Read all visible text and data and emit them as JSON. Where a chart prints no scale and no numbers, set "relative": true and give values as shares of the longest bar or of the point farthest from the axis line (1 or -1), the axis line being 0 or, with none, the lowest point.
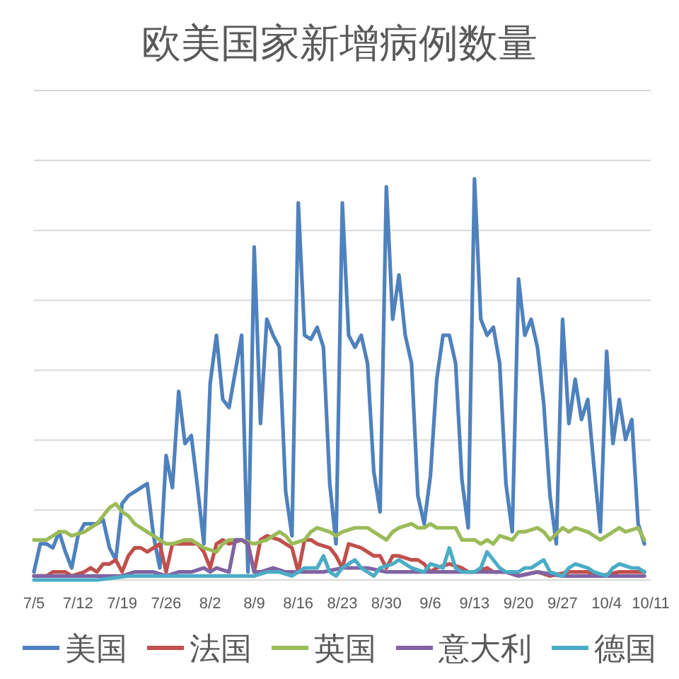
{
  "chart_data": {
    "type": "line",
    "title": "欧美国家新增病例数量",
    "relative": true,
    "grid": "y",
    "legend": "bottom",
    "xlim": [
      "--07-05",
      "--10-11"
    ],
    "xticks": [
      {
        "value": "--07-05",
        "label": "7/5"
      },
      {
        "value": "--07-12",
        "label": "7/12"
      },
      {
        "value": "--07-19",
        "label": "7/19"
      },
      {
        "value": "--07-26",
        "label": "7/26"
      },
      {
        "value": "--08-02",
        "label": "8/2"
      },
      {
        "value": "--08-09",
        "label": "8/9"
      },
      {
        "value": "--08-16",
        "label": "8/16"
      },
      {
        "value": "--08-23",
        "label": "8/23"
      },
      {
        "value": "--08-30",
        "label": "8/30"
      },
      {
        "value": "--09-06",
        "label": "9/6"
      },
      {
        "value": "--09-13",
        "label": "9/13"
      },
      {
        "value": "--09-20",
        "label": "9/20"
      },
      {
        "value": "--09-27",
        "label": "9/27"
      },
      {
        "value": "--10-04",
        "label": "10/4"
      },
      {
        "value": "--10-11",
        "label": "10/11"
      }
    ],
    "x": [
      "--07-05",
      "--07-06",
      "--07-07",
      "--07-08",
      "--07-09",
      "--07-10",
      "--07-11",
      "--07-12",
      "--07-13",
      "--07-14",
      "--07-15",
      "--07-16",
      "--07-17",
      "--07-18",
      "--07-19",
      "--07-20",
      "--07-21",
      "--07-22",
      "--07-23",
      "--07-24",
      "--07-25",
      "--07-26",
      "--07-27",
      "--07-28",
      "--07-29",
      "--07-30",
      "--07-31",
      "--08-01",
      "--08-02",
      "--08-03",
      "--08-04",
      "--08-05",
      "--08-06",
      "--08-07",
      "--08-08",
      "--08-09",
      "--08-10",
      "--08-11",
      "--08-12",
      "--08-13",
      "--08-14",
      "--08-15",
      "--08-16",
      "--08-17",
      "--08-18",
      "--08-19",
      "--08-20",
      "--08-21",
      "--08-22",
      "--08-23",
      "--08-24",
      "--08-25",
      "--08-26",
      "--08-27",
      "--08-28",
      "--08-29",
      "--08-30",
      "--08-31",
      "--09-01",
      "--09-02",
      "--09-03",
      "--09-04",
      "--09-05",
      "--09-06",
      "--09-07",
      "--09-08",
      "--09-09",
      "--09-10",
      "--09-11",
      "--09-12",
      "--09-13",
      "--09-14",
      "--09-15",
      "--09-16",
      "--09-17",
      "--09-18",
      "--09-19",
      "--09-20",
      "--09-21",
      "--09-22",
      "--09-23",
      "--09-24",
      "--09-25",
      "--09-26",
      "--09-27",
      "--09-28",
      "--09-29",
      "--09-30",
      "--10-01",
      "--10-02",
      "--10-03",
      "--10-04",
      "--10-05",
      "--10-06",
      "--10-07",
      "--10-08",
      "--10-09",
      "--10-10"
    ],
    "series": [
      {
        "name": "美国",
        "color": "#4f81bd",
        "values": [
          0.02,
          0.09,
          0.09,
          0.08,
          0.12,
          0.07,
          0.03,
          0.11,
          0.14,
          0.14,
          0.14,
          0.15,
          0.08,
          0.05,
          0.19,
          0.21,
          0.22,
          0.23,
          0.24,
          0.11,
          0.03,
          0.31,
          0.23,
          0.47,
          0.34,
          0.36,
          0.23,
          0.09,
          0.49,
          0.61,
          0.45,
          0.43,
          0.52,
          0.61,
          0.02,
          0.83,
          0.39,
          0.65,
          0.61,
          0.58,
          0.22,
          0.11,
          0.94,
          0.61,
          0.6,
          0.63,
          0.58,
          0.24,
          0.09,
          0.94,
          0.61,
          0.58,
          0.61,
          0.54,
          0.27,
          0.17,
          0.98,
          0.65,
          0.76,
          0.61,
          0.54,
          0.21,
          0.14,
          0.26,
          0.5,
          0.61,
          0.61,
          0.54,
          0.25,
          0.13,
          1.0,
          0.65,
          0.61,
          0.63,
          0.54,
          0.24,
          0.12,
          0.75,
          0.61,
          0.65,
          0.58,
          0.44,
          0.21,
          0.09,
          0.65,
          0.39,
          0.5,
          0.4,
          0.45,
          0.28,
          0.12,
          0.57,
          0.34,
          0.45,
          0.35,
          0.4,
          0.14,
          0.09
        ]
      },
      {
        "name": "法国",
        "color": "#c0504d",
        "x": [
          "--07-05",
          "--07-07",
          "--07-08",
          "--07-10",
          "--07-11",
          "--07-13",
          "--07-14",
          "--07-15",
          "--07-16",
          "--07-17",
          "--07-18",
          "--07-19",
          "--07-20",
          "--07-21",
          "--07-22",
          "--07-23",
          "--07-25",
          "--07-26",
          "--07-27",
          "--07-29",
          "--07-30",
          "--07-31",
          "--08-01",
          "--08-02",
          "--08-03",
          "--08-04",
          "--08-05",
          "--08-07",
          "--08-08",
          "--08-09",
          "--08-10",
          "--08-11",
          "--08-13",
          "--08-14",
          "--08-15",
          "--08-16",
          "--08-17",
          "--08-18",
          "--08-19",
          "--08-21",
          "--08-22",
          "--08-23",
          "--08-24",
          "--08-26",
          "--08-27",
          "--08-28",
          "--08-29",
          "--08-30",
          "--08-31",
          "--09-01",
          "--09-03",
          "--09-04",
          "--09-05",
          "--09-06",
          "--09-07",
          "--09-09",
          "--09-11",
          "--09-12",
          "--09-13",
          "--09-15",
          "--09-16",
          "--09-18",
          "--09-20",
          "--09-23",
          "--09-25",
          "--09-28",
          "--10-01",
          "--10-03",
          "--10-06",
          "--10-09",
          "--10-10"
        ],
        "values": [
          0.01,
          0.01,
          0.02,
          0.02,
          0.01,
          0.02,
          0.03,
          0.02,
          0.04,
          0.04,
          0.05,
          0.02,
          0.06,
          0.08,
          0.08,
          0.07,
          0.09,
          0.02,
          0.09,
          0.09,
          0.09,
          0.09,
          0.07,
          0.03,
          0.09,
          0.1,
          0.09,
          0.1,
          0.09,
          0.02,
          0.1,
          0.11,
          0.1,
          0.09,
          0.08,
          0.02,
          0.1,
          0.1,
          0.09,
          0.08,
          0.06,
          0.03,
          0.09,
          0.08,
          0.07,
          0.06,
          0.06,
          0.03,
          0.06,
          0.06,
          0.05,
          0.05,
          0.04,
          0.02,
          0.03,
          0.04,
          0.03,
          0.02,
          0.02,
          0.03,
          0.02,
          0.02,
          0.01,
          0.02,
          0.01,
          0.02,
          0.02,
          0.01,
          0.02,
          0.02,
          0.02
        ]
      },
      {
        "name": "英国",
        "color": "#9bbb59",
        "x": [
          "--07-05",
          "--07-07",
          "--07-08",
          "--07-09",
          "--07-10",
          "--07-11",
          "--07-13",
          "--07-14",
          "--07-15",
          "--07-17",
          "--07-18",
          "--07-19",
          "--07-20",
          "--07-21",
          "--07-23",
          "--07-25",
          "--07-26",
          "--07-27",
          "--07-29",
          "--07-30",
          "--07-31",
          "--08-01",
          "--08-03",
          "--08-04",
          "--08-05",
          "--08-07",
          "--08-09",
          "--08-11",
          "--08-13",
          "--08-14",
          "--08-15",
          "--08-17",
          "--08-18",
          "--08-19",
          "--08-21",
          "--08-22",
          "--08-23",
          "--08-25",
          "--08-27",
          "--08-28",
          "--08-30",
          "--08-31",
          "--09-01",
          "--09-03",
          "--09-04",
          "--09-05",
          "--09-06",
          "--09-07",
          "--09-08",
          "--09-10",
          "--09-11",
          "--09-13",
          "--09-14",
          "--09-15",
          "--09-16",
          "--09-17",
          "--09-19",
          "--09-20",
          "--09-21",
          "--09-23",
          "--09-24",
          "--09-25",
          "--09-27",
          "--09-28",
          "--09-29",
          "--10-01",
          "--10-02",
          "--10-03",
          "--10-05",
          "--10-06",
          "--10-07",
          "--10-09",
          "--10-10"
        ],
        "values": [
          0.1,
          0.1,
          0.11,
          0.12,
          0.12,
          0.11,
          0.12,
          0.13,
          0.14,
          0.18,
          0.19,
          0.17,
          0.16,
          0.14,
          0.12,
          0.1,
          0.09,
          0.09,
          0.1,
          0.1,
          0.09,
          0.08,
          0.07,
          0.09,
          0.1,
          0.1,
          0.09,
          0.1,
          0.12,
          0.11,
          0.09,
          0.1,
          0.12,
          0.13,
          0.12,
          0.11,
          0.12,
          0.13,
          0.13,
          0.12,
          0.1,
          0.12,
          0.13,
          0.14,
          0.13,
          0.13,
          0.14,
          0.13,
          0.13,
          0.13,
          0.1,
          0.1,
          0.09,
          0.1,
          0.09,
          0.11,
          0.1,
          0.12,
          0.12,
          0.13,
          0.12,
          0.1,
          0.13,
          0.12,
          0.13,
          0.12,
          0.11,
          0.1,
          0.12,
          0.13,
          0.12,
          0.13,
          0.1
        ]
      },
      {
        "name": "意大利",
        "color": "#8064a2",
        "x": [
          "--07-05",
          "--07-15",
          "--07-19",
          "--07-21",
          "--07-24",
          "--07-26",
          "--07-28",
          "--07-30",
          "--08-01",
          "--08-02",
          "--08-03",
          "--08-05",
          "--08-06",
          "--08-07",
          "--08-08",
          "--08-09",
          "--08-10",
          "--08-12",
          "--08-14",
          "--08-15",
          "--08-17",
          "--08-20",
          "--08-23",
          "--08-27",
          "--08-30",
          "--09-03",
          "--09-06",
          "--09-08",
          "--09-11",
          "--09-15",
          "--09-18",
          "--09-20",
          "--09-23",
          "--09-27",
          "--09-30",
          "--10-03",
          "--10-07",
          "--10-10"
        ],
        "values": [
          0.01,
          0.01,
          0.01,
          0.02,
          0.02,
          0.01,
          0.02,
          0.02,
          0.03,
          0.02,
          0.03,
          0.02,
          0.1,
          0.1,
          0.09,
          0.02,
          0.02,
          0.03,
          0.02,
          0.02,
          0.02,
          0.02,
          0.03,
          0.03,
          0.02,
          0.02,
          0.02,
          0.02,
          0.02,
          0.02,
          0.02,
          0.01,
          0.02,
          0.01,
          0.01,
          0.01,
          0.01,
          0.01
        ]
      },
      {
        "name": "德国",
        "color": "#4bacc6",
        "x": [
          "--07-05",
          "--07-15",
          "--07-20",
          "--07-26",
          "--07-30",
          "--08-01",
          "--08-03",
          "--08-05",
          "--08-07",
          "--08-09",
          "--08-11",
          "--08-13",
          "--08-15",
          "--08-17",
          "--08-19",
          "--08-20",
          "--08-21",
          "--08-22",
          "--08-23",
          "--08-25",
          "--08-26",
          "--08-27",
          "--08-28",
          "--08-29",
          "--08-31",
          "--09-01",
          "--09-02",
          "--09-03",
          "--09-05",
          "--09-06",
          "--09-08",
          "--09-09",
          "--09-10",
          "--09-11",
          "--09-13",
          "--09-14",
          "--09-15",
          "--09-17",
          "--09-18",
          "--09-20",
          "--09-21",
          "--09-22",
          "--09-24",
          "--09-25",
          "--09-27",
          "--09-28",
          "--09-29",
          "--10-01",
          "--10-02",
          "--10-04",
          "--10-05",
          "--10-06",
          "--10-08",
          "--10-09",
          "--10-10"
        ],
        "values": [
          0.0,
          0.0,
          0.01,
          0.01,
          0.01,
          0.01,
          0.01,
          0.01,
          0.01,
          0.01,
          0.02,
          0.02,
          0.01,
          0.03,
          0.03,
          0.06,
          0.02,
          0.01,
          0.03,
          0.05,
          0.03,
          0.02,
          0.01,
          0.03,
          0.04,
          0.05,
          0.04,
          0.03,
          0.02,
          0.04,
          0.03,
          0.08,
          0.03,
          0.02,
          0.02,
          0.03,
          0.07,
          0.03,
          0.02,
          0.02,
          0.03,
          0.03,
          0.05,
          0.02,
          0.01,
          0.03,
          0.04,
          0.03,
          0.02,
          0.01,
          0.03,
          0.04,
          0.03,
          0.03,
          0.02
        ]
      }
    ]
  }
}
